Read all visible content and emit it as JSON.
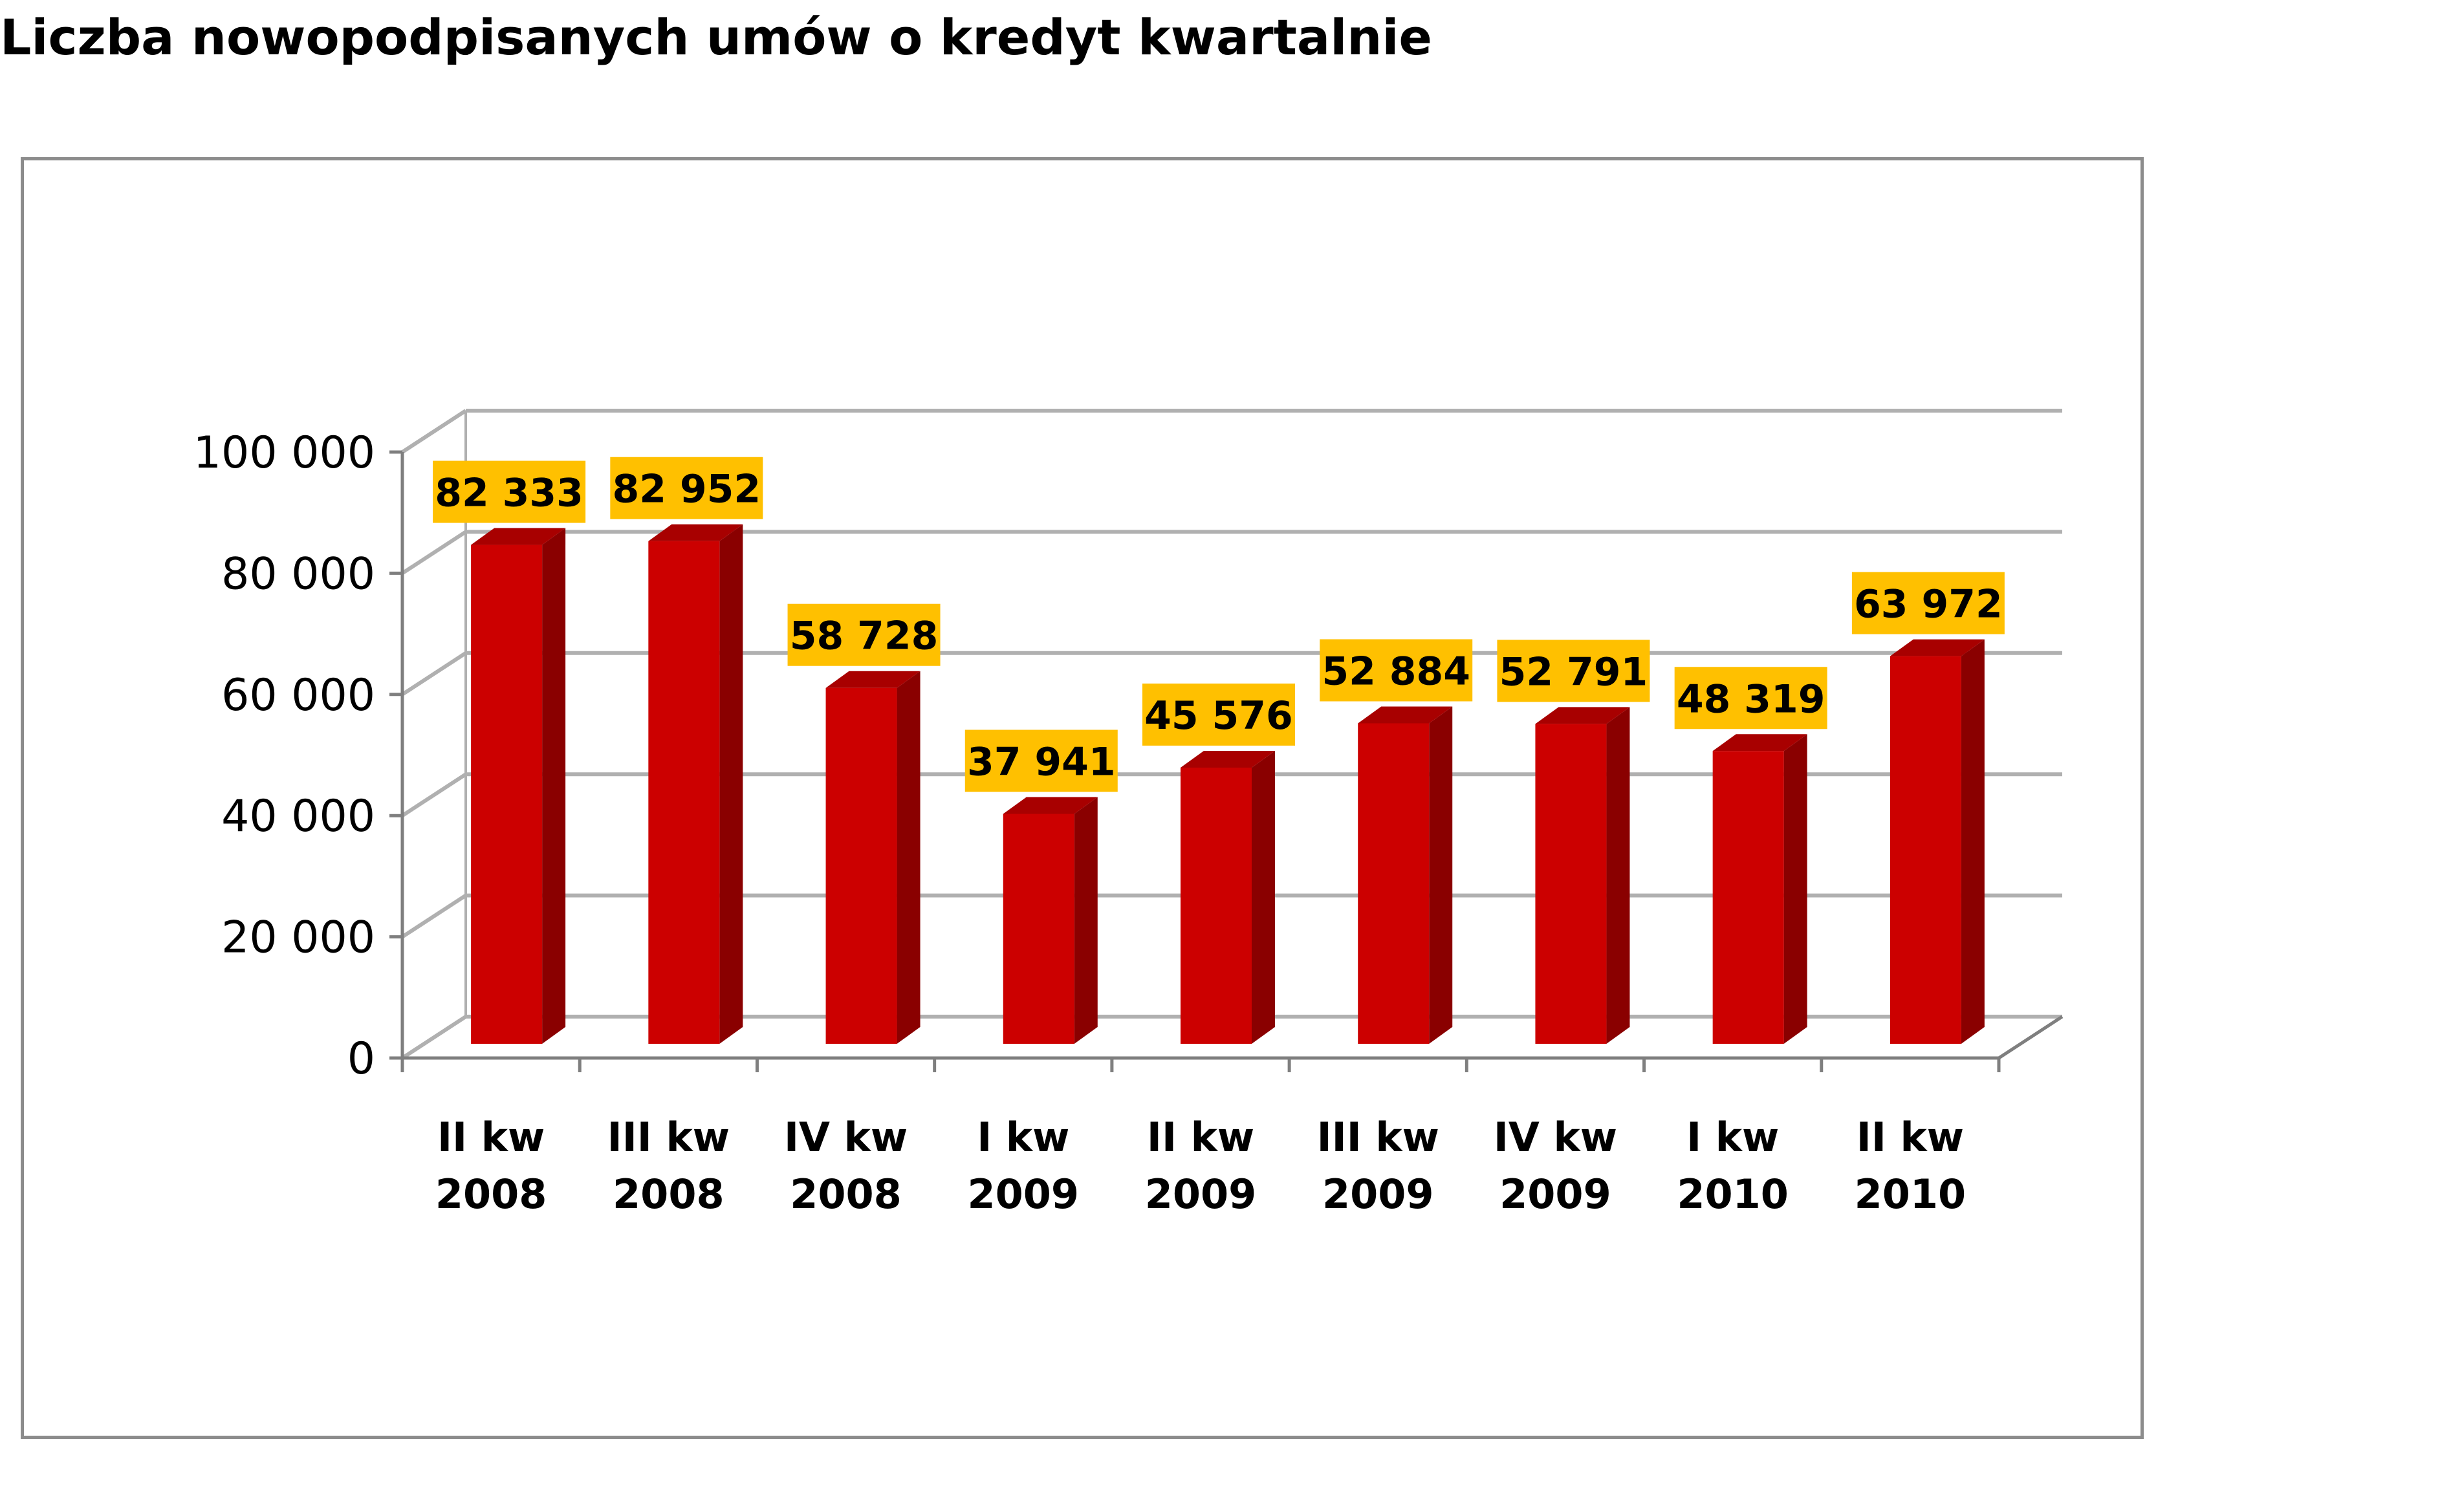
{
  "page": {
    "title": "Liczba nowopodpisanych umów o kredyt kwartalnie"
  },
  "chart_data": {
    "type": "bar",
    "title": "Liczba nowopodpisanych umów o kredyt kwartalnie",
    "categories": [
      [
        "II kw",
        "2008"
      ],
      [
        "III kw",
        "2008"
      ],
      [
        "IV kw",
        "2008"
      ],
      [
        "I kw",
        "2009"
      ],
      [
        "II kw",
        "2009"
      ],
      [
        "III kw",
        "2009"
      ],
      [
        "IV kw",
        "2009"
      ],
      [
        "I kw",
        "2010"
      ],
      [
        "II kw",
        "2010"
      ]
    ],
    "values": [
      82333,
      82952,
      58728,
      37941,
      45576,
      52884,
      52791,
      48319,
      63972
    ],
    "data_labels": [
      "82 333",
      "82 952",
      "58 728",
      "37 941",
      "45 576",
      "52 884",
      "52 791",
      "48 319",
      "63 972"
    ],
    "y_ticks": [
      0,
      20000,
      40000,
      60000,
      80000,
      100000
    ],
    "y_tick_labels": [
      "0",
      "20 000",
      "40 000",
      "60 000",
      "80 000",
      "100 000"
    ],
    "ylim": [
      0,
      100000
    ],
    "xlabel": "",
    "ylabel": "",
    "grid": true,
    "legend": "none",
    "style": "3d",
    "colors": {
      "bar_front": "#cc0000",
      "bar_side": "#8a0000",
      "bar_top": "#a80000",
      "label_bg": "#ffc000",
      "label_text": "#000000",
      "grid": "#b0b0b0",
      "axis": "#7f7f7f",
      "frame": "#8c8c8c"
    }
  }
}
